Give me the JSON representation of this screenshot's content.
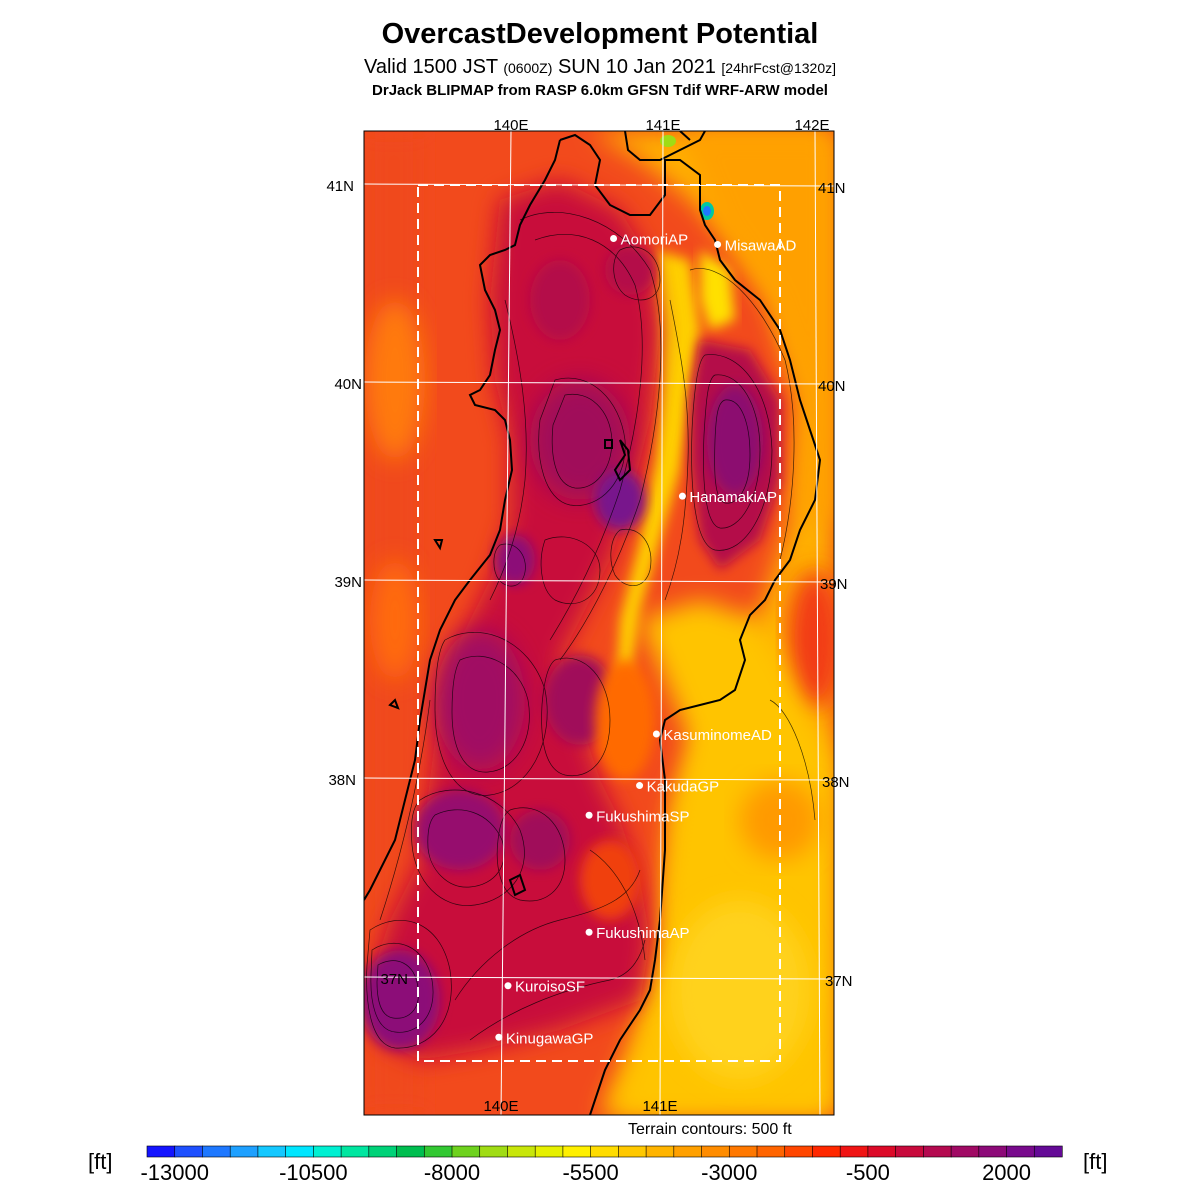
{
  "title": "OvercastDevelopment Potential",
  "subtitle": {
    "valid_prefix": "Valid 1500 JST",
    "utc": "(0600Z)",
    "date": "SUN 10 Jan 2021",
    "forecast": "[24hrFcst@1320z]"
  },
  "model_line": "DrJack BLIPMAP from RASP 6.0km GFSN Tdif WRF-ARW model",
  "map": {
    "lon_labels_top": [
      "140E",
      "141E",
      "142E"
    ],
    "lon_labels_bottom": [
      "140E",
      "141E"
    ],
    "lat_labels_left": [
      "41N",
      "40N",
      "39N",
      "38N",
      "37N"
    ],
    "lat_labels_right": [
      "41N",
      "40N",
      "39N",
      "38N",
      "37N"
    ],
    "stations": [
      {
        "name": "AomoriAP",
        "lon": 140.69,
        "lat": 40.73
      },
      {
        "name": "MisawaAD",
        "lon": 141.37,
        "lat": 40.7
      },
      {
        "name": "HanamakiAP",
        "lon": 141.14,
        "lat": 39.43
      },
      {
        "name": "KasuminomeAD",
        "lon": 140.97,
        "lat": 38.23
      },
      {
        "name": "KakudaGP",
        "lon": 140.86,
        "lat": 37.97
      },
      {
        "name": "FukushimaSP",
        "lon": 140.53,
        "lat": 37.82
      },
      {
        "name": "FukushimaAP",
        "lon": 140.53,
        "lat": 37.23
      },
      {
        "name": "KuroisoSF",
        "lon": 140.0,
        "lat": 36.96
      },
      {
        "name": "KinugawaGP",
        "lon": 139.94,
        "lat": 36.7
      }
    ],
    "terrain_note": "Terrain contours: 500 ft"
  },
  "colorbar": {
    "unit": "[ft]",
    "tick_labels": [
      "-13000",
      "-10500",
      "-8000",
      "-5500",
      "-3000",
      "-500",
      "2000"
    ],
    "colors": [
      "#1414ff",
      "#1e50ff",
      "#1e78ff",
      "#1ea0ff",
      "#14c8ff",
      "#00e6ff",
      "#00f0d2",
      "#00e6a0",
      "#00d278",
      "#00be50",
      "#32c832",
      "#6ed21e",
      "#a0dc14",
      "#c8e60a",
      "#e6f000",
      "#fff000",
      "#ffdc00",
      "#ffc800",
      "#ffb400",
      "#ffa000",
      "#ff8c00",
      "#ff7800",
      "#ff6400",
      "#ff4600",
      "#ff2800",
      "#f01414",
      "#dc0a28",
      "#c80a3c",
      "#b40a50",
      "#a00a64",
      "#8c0a78",
      "#780a8c",
      "#640a96"
    ]
  }
}
